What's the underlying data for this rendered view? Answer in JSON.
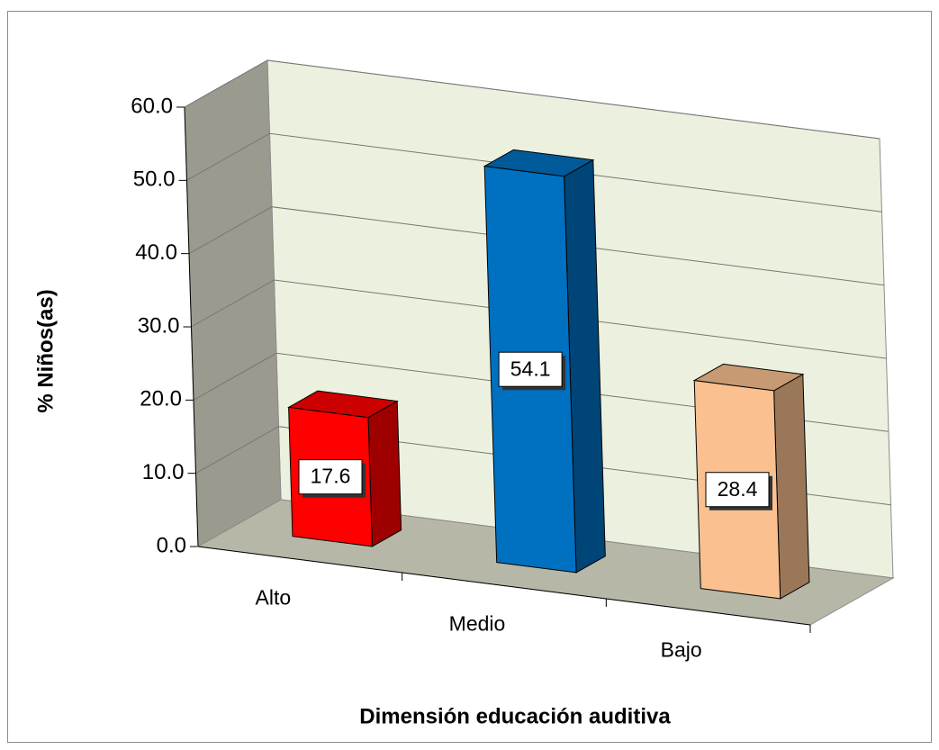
{
  "chart_data": {
    "type": "bar3d",
    "categories": [
      "Alto",
      "Medio",
      "Bajo"
    ],
    "values": [
      17.6,
      54.1,
      28.4
    ],
    "colors": [
      "#ff0000",
      "#0070c0",
      "#fac090"
    ],
    "xlabel": "Dimensión educación auditiva",
    "ylabel": "% Niños(as)",
    "ylim": [
      0,
      60
    ],
    "yticks": [
      {
        "value": 0,
        "label": "0.0"
      },
      {
        "value": 10,
        "label": "10.0"
      },
      {
        "value": 20,
        "label": "20.0"
      },
      {
        "value": 30,
        "label": "30.0"
      },
      {
        "value": 40,
        "label": "40.0"
      },
      {
        "value": 50,
        "label": "50.0"
      },
      {
        "value": 60,
        "label": "60.0"
      }
    ],
    "grid": true
  }
}
